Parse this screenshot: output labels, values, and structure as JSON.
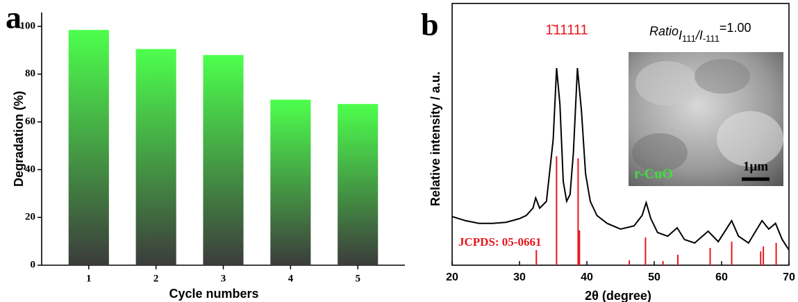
{
  "chart_data": [
    {
      "type": "bar",
      "panel": "a",
      "ylabel": "Degradation (%)",
      "xlabel": "Cycle numbers",
      "x": [
        1,
        2,
        3,
        4,
        5
      ],
      "values": [
        98.5,
        90.5,
        88,
        69.3,
        67.5
      ],
      "xlim": [
        0.3,
        5.7
      ],
      "xticks": [
        1,
        2,
        3,
        4,
        5
      ],
      "ylim": [
        0,
        105.8
      ],
      "yticks": [
        0,
        20,
        40,
        60,
        80,
        100
      ],
      "gradient": [
        "#4dff4d",
        "#3c3c3c"
      ]
    },
    {
      "type": "line",
      "panel": "b",
      "ylabel": "Relative intensity / a.u.",
      "xlabel": "2θ (degree)",
      "color": "#000000",
      "x": [
        20,
        22,
        24,
        26,
        28,
        30,
        31,
        32,
        32.4,
        33,
        34,
        35,
        35.5,
        36,
        36.5,
        37,
        37.5,
        38,
        38.6,
        39.2,
        39.8,
        40.5,
        41.5,
        43,
        45,
        47,
        48.2,
        48.8,
        49.5,
        50.5,
        52,
        53.4,
        54.5,
        56,
        58,
        59.5,
        61.5,
        62.5,
        64,
        66,
        67,
        68,
        69,
        70
      ],
      "values": [
        18.6,
        17,
        16,
        16,
        16.4,
        17.8,
        19,
        21.8,
        25.7,
        21.8,
        24.4,
        48,
        75.3,
        61.5,
        32,
        24.4,
        27,
        43,
        75.3,
        59,
        35,
        24.4,
        19,
        16,
        13.8,
        15,
        19,
        23.9,
        17.8,
        12.5,
        11.1,
        14.3,
        9.8,
        8.5,
        13,
        9,
        17,
        11.1,
        8.5,
        17,
        13.8,
        16,
        9.8,
        5.8
      ],
      "sticks": {
        "color": "#e8141c",
        "label": "JCPDS: 05-0661",
        "x": [
          32.5,
          35.5,
          38.7,
          38.9,
          46.3,
          48.7,
          51.3,
          53.5,
          58.3,
          61.5,
          65.8,
          66.2,
          68.1
        ],
        "values": [
          5.8,
          41.6,
          40.8,
          13.3,
          1.9,
          10.6,
          1.6,
          4,
          6.6,
          9,
          5.3,
          7.2,
          8.5
        ]
      },
      "peak_labels": [
        {
          "x": 35.5,
          "label": "1̄11"
        },
        {
          "x": 38.6,
          "label": "111"
        }
      ],
      "ratio": [
        "Ratio",
        "I",
        "111",
        "/I",
        "-111",
        "=1.00"
      ],
      "inset": {
        "label": "r-CuO",
        "scale": "1µm"
      },
      "xlim": [
        20,
        70
      ],
      "xticks": [
        20,
        30,
        40,
        50,
        60,
        70
      ],
      "ylim": [
        0,
        100
      ]
    }
  ]
}
